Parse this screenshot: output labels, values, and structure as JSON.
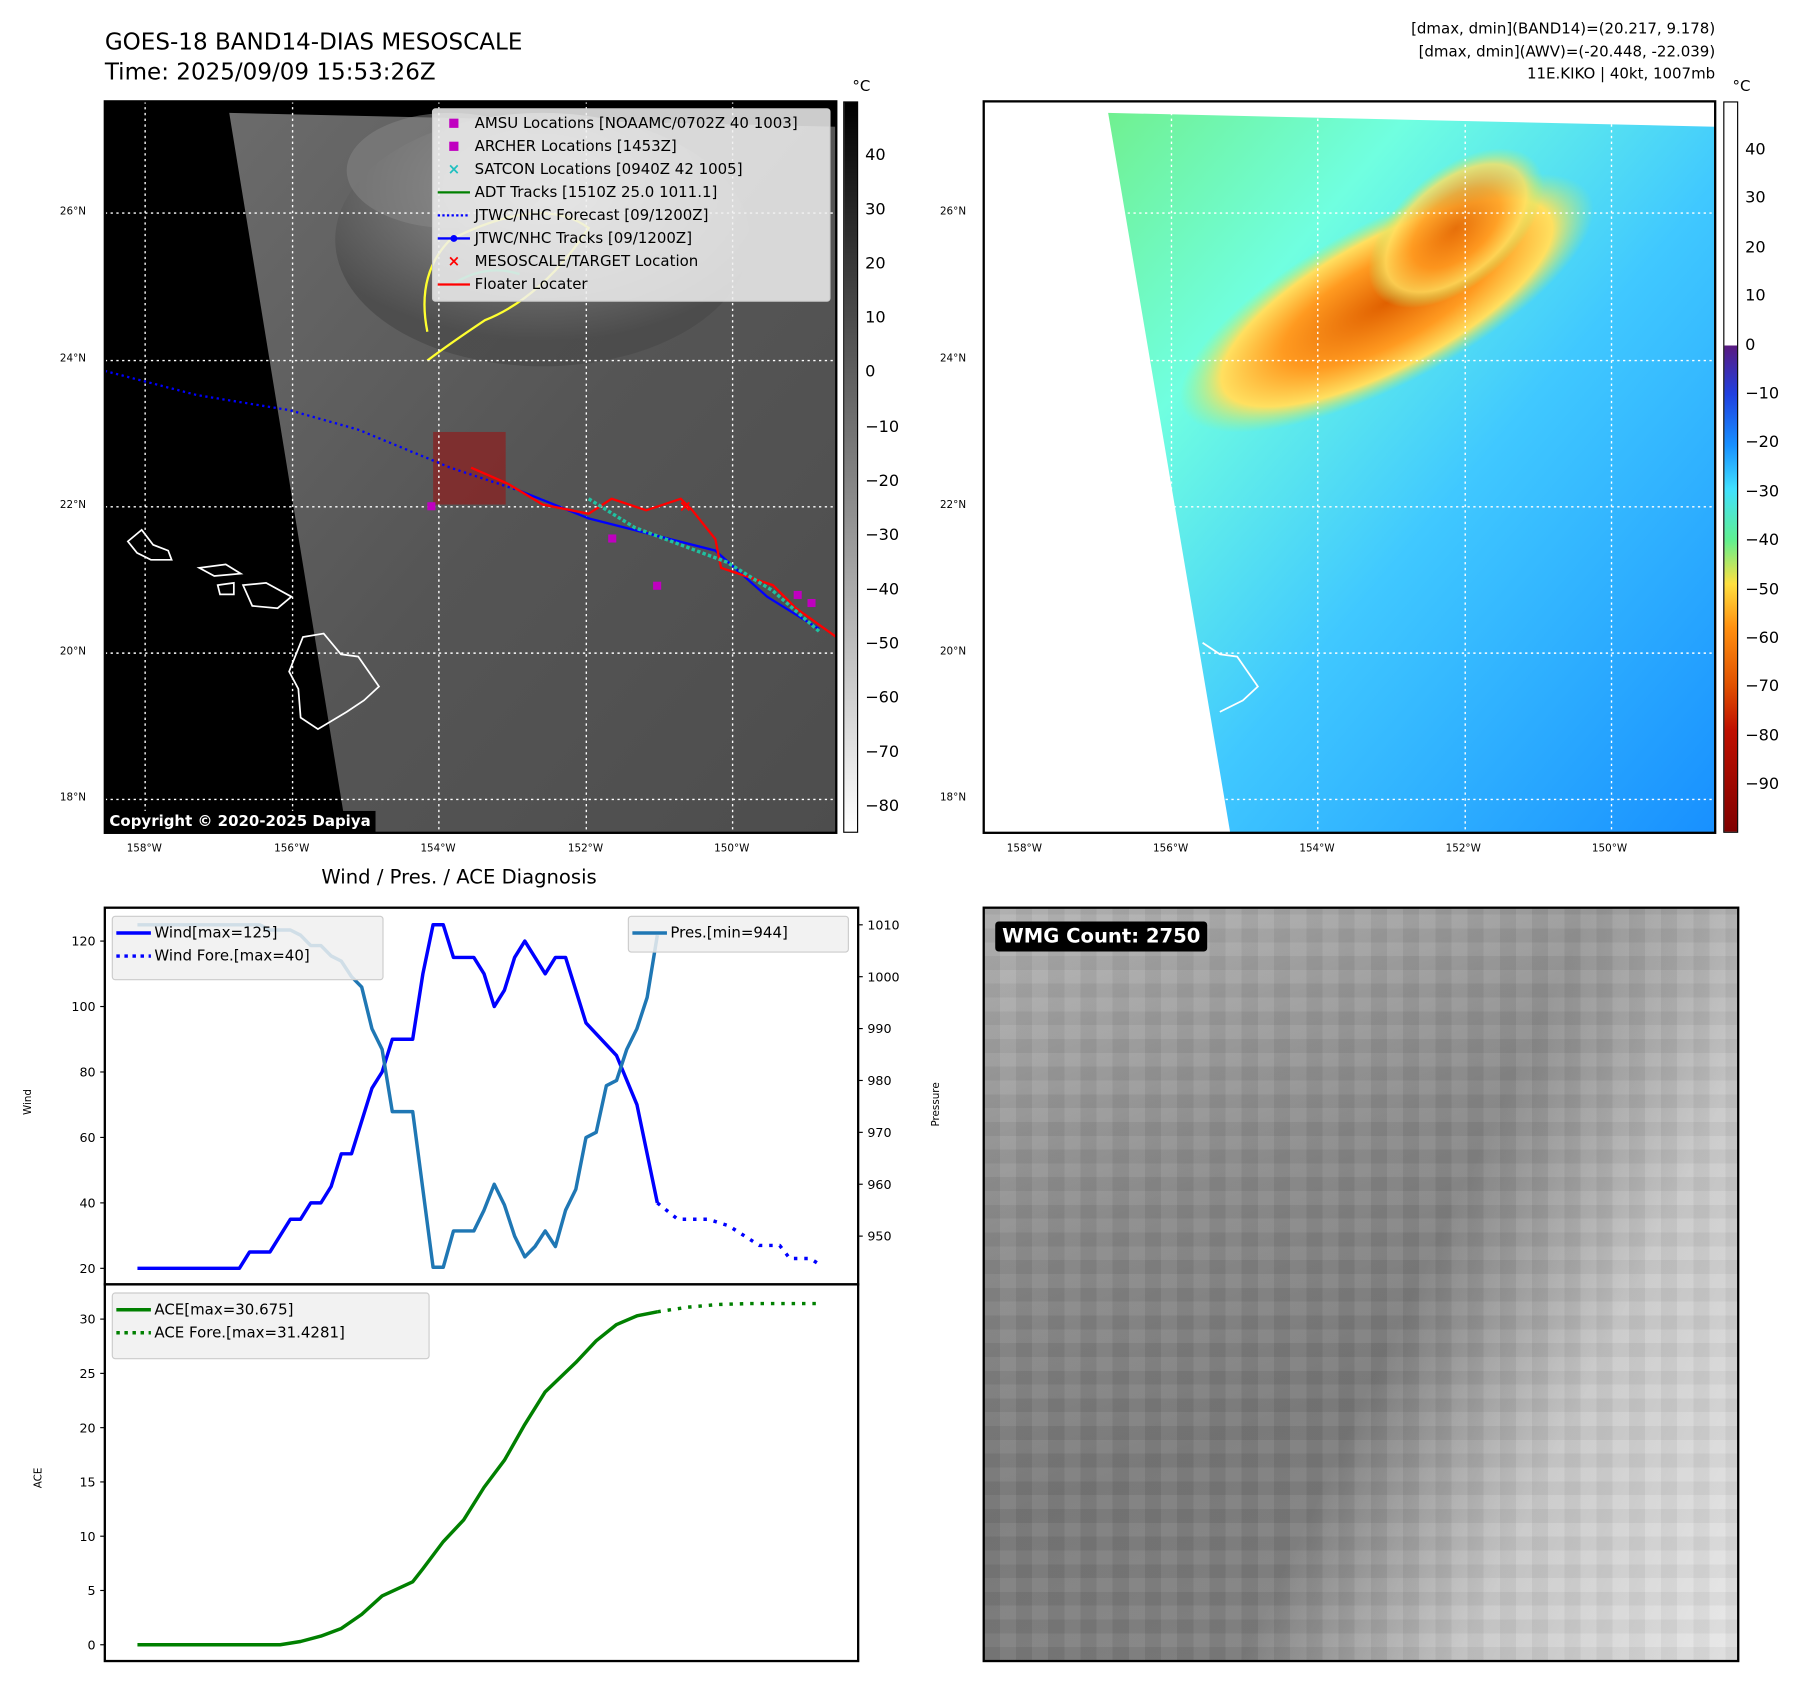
{
  "header": {
    "title": "GOES-18 BAND14-DIAS MESOSCALE",
    "time": "Time: 2025/09/09 15:53:26Z",
    "info": [
      "[dmax, dmin](BAND14)=(20.217, 9.178)",
      "[dmax, dmin](AWV)=(-20.448, -22.039)",
      "11E.KIKO | 40kt, 1007mb"
    ]
  },
  "map": {
    "lat_labels": [
      "26°N",
      "24°N",
      "22°N",
      "20°N",
      "18°N"
    ],
    "lon_labels": [
      "158°W",
      "156°W",
      "154°W",
      "152°W",
      "150°W"
    ],
    "copyright": "Copyright © 2020-2025 Dapiya",
    "legend": [
      {
        "label": "AMSU Locations [NOAAMC/0702Z 40 1003]",
        "icon": "square-marker",
        "color": "#c000c0"
      },
      {
        "label": "ARCHER Locations [1453Z]",
        "icon": "square-marker",
        "color": "#c000c0"
      },
      {
        "label": "SATCON Locations [0940Z 42 1005]",
        "icon": "x-marker",
        "color": "#20c0c0"
      },
      {
        "label": "ADT Tracks [1510Z 25.0 1011.1]",
        "icon": "line",
        "color": "#008000"
      },
      {
        "label": "JTWC/NHC Forecast [09/1200Z]",
        "icon": "dotted-line",
        "color": "#0000ff"
      },
      {
        "label": "JTWC/NHC Tracks [09/1200Z]",
        "icon": "line-dot",
        "color": "#0000ff"
      },
      {
        "label": "MESOSCALE/TARGET Location",
        "icon": "x-marker",
        "color": "#ff0000"
      },
      {
        "label": "Floater Locater",
        "icon": "line",
        "color": "#ff0000"
      }
    ],
    "colorbar_unit": "°C",
    "colorbar_left_ticks": [
      "40",
      "30",
      "20",
      "10",
      "0",
      "−10",
      "−20",
      "−30",
      "−40",
      "−50",
      "−60",
      "−70",
      "−80"
    ],
    "colorbar_right_ticks": [
      "40",
      "30",
      "20",
      "10",
      "0",
      "−10",
      "−20",
      "−30",
      "−40",
      "−50",
      "−60",
      "−70",
      "−80",
      "−90"
    ]
  },
  "wmg": {
    "label": "WMG Count: 2750"
  },
  "chart_data": [
    {
      "type": "line",
      "title": "Wind / Pres. / ACE Diagnosis",
      "ylabel": "Wind",
      "y2label": "Pressure",
      "xlim": [
        -3.2,
        70.7
      ],
      "ylim": [
        15.1,
        130.2
      ],
      "y2lim": [
        940.7,
        1013.3
      ],
      "yticks": [
        20,
        40,
        60,
        80,
        100,
        120
      ],
      "y2ticks": [
        950,
        960,
        970,
        980,
        990,
        1000,
        1010
      ],
      "series": [
        {
          "name": "Wind[max=125]",
          "axis": "left",
          "style": "solid",
          "color": "#0000ff",
          "points": [
            [
              0,
              20
            ],
            [
              10,
              20
            ],
            [
              11,
              25
            ],
            [
              13,
              25
            ],
            [
              15,
              35
            ],
            [
              16,
              35
            ],
            [
              17,
              40
            ],
            [
              18,
              40
            ],
            [
              19,
              45
            ],
            [
              20,
              55
            ],
            [
              21,
              55
            ],
            [
              23,
              75
            ],
            [
              24,
              80
            ],
            [
              25,
              90
            ],
            [
              27,
              90
            ],
            [
              28,
              110
            ],
            [
              29,
              125
            ],
            [
              30,
              125
            ],
            [
              31,
              115
            ],
            [
              33,
              115
            ],
            [
              34,
              110
            ],
            [
              35,
              100
            ],
            [
              36,
              105
            ],
            [
              37,
              115
            ],
            [
              38,
              120
            ],
            [
              40,
              110
            ],
            [
              41,
              115
            ],
            [
              42,
              115
            ],
            [
              44,
              95
            ],
            [
              47,
              85
            ],
            [
              49,
              70
            ],
            [
              51,
              40
            ]
          ]
        },
        {
          "name": "Wind Fore.[max=40]",
          "axis": "left",
          "style": "dotted",
          "color": "#0000ff",
          "points": [
            [
              51,
              40
            ],
            [
              53,
              35
            ],
            [
              56,
              35
            ],
            [
              58,
              33
            ],
            [
              61,
              27
            ],
            [
              63,
              27
            ],
            [
              64,
              23
            ],
            [
              66,
              23
            ],
            [
              67,
              21
            ]
          ]
        },
        {
          "name": "Pres.[min=944]",
          "axis": "right",
          "style": "solid",
          "color": "#1f77b4",
          "points": [
            [
              0,
              1010
            ],
            [
              12,
              1010
            ],
            [
              13,
              1009
            ],
            [
              15,
              1009
            ],
            [
              16,
              1008
            ],
            [
              17,
              1006
            ],
            [
              18,
              1006
            ],
            [
              19,
              1004
            ],
            [
              20,
              1003
            ],
            [
              21,
              1000
            ],
            [
              22,
              998
            ],
            [
              23,
              990
            ],
            [
              24,
              986
            ],
            [
              25,
              974
            ],
            [
              27,
              974
            ],
            [
              29,
              944
            ],
            [
              30,
              944
            ],
            [
              31,
              951
            ],
            [
              33,
              951
            ],
            [
              34,
              955
            ],
            [
              35,
              960
            ],
            [
              36,
              956
            ],
            [
              37,
              950
            ],
            [
              38,
              946
            ],
            [
              39,
              948
            ],
            [
              40,
              951
            ],
            [
              41,
              948
            ],
            [
              42,
              955
            ],
            [
              43,
              959
            ],
            [
              44,
              969
            ],
            [
              45,
              970
            ],
            [
              46,
              979
            ],
            [
              47,
              980
            ],
            [
              48,
              986
            ],
            [
              49,
              990
            ],
            [
              50,
              996
            ],
            [
              51,
              1008
            ]
          ]
        }
      ]
    },
    {
      "type": "line",
      "ylabel": "ACE",
      "xlim": [
        -3.2,
        70.7
      ],
      "ylim": [
        -1.5,
        33.2
      ],
      "yticks": [
        0,
        5,
        10,
        15,
        20,
        25,
        30
      ],
      "series": [
        {
          "name": "ACE[max=30.675]",
          "style": "solid",
          "color": "#008000",
          "points": [
            [
              0,
              0
            ],
            [
              14,
              0
            ],
            [
              16,
              0.3
            ],
            [
              18,
              0.8
            ],
            [
              20,
              1.5
            ],
            [
              22,
              2.8
            ],
            [
              24,
              4.5
            ],
            [
              27,
              5.8
            ],
            [
              28,
              7
            ],
            [
              30,
              9.5
            ],
            [
              32,
              11.5
            ],
            [
              34,
              14.5
            ],
            [
              36,
              17
            ],
            [
              38,
              20.3
            ],
            [
              40,
              23.3
            ],
            [
              43,
              26
            ],
            [
              45,
              28
            ],
            [
              47,
              29.5
            ],
            [
              49,
              30.3
            ],
            [
              51,
              30.675
            ]
          ]
        },
        {
          "name": "ACE Fore.[max=31.4281]",
          "style": "dotted",
          "color": "#008000",
          "points": [
            [
              51,
              30.675
            ],
            [
              54,
              31.1
            ],
            [
              57,
              31.35
            ],
            [
              60,
              31.43
            ],
            [
              64,
              31.43
            ],
            [
              67,
              31.43
            ]
          ]
        }
      ]
    }
  ]
}
